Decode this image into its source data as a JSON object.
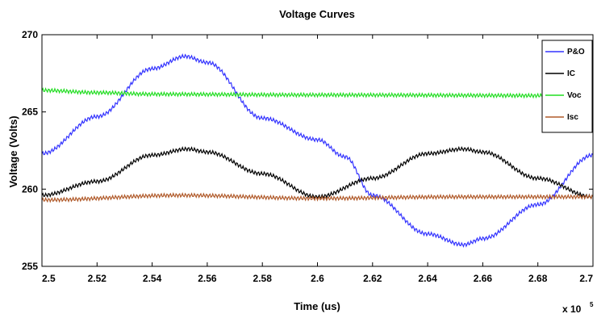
{
  "chart_data": {
    "type": "line",
    "title": "Voltage Curves",
    "xlabel": "Time (us)",
    "ylabel": "Voltage (Volts)",
    "x_multiplier_base": "x 10",
    "x_multiplier_exponent": "5",
    "xlim": [
      2.5,
      2.7
    ],
    "ylim": [
      255,
      270
    ],
    "x_ticks": [
      "2.5",
      "2.52",
      "2.54",
      "2.56",
      "2.58",
      "2.6",
      "2.62",
      "2.64",
      "2.66",
      "2.68",
      "2.7"
    ],
    "y_ticks": [
      "255",
      "260",
      "265",
      "270"
    ],
    "legend_position": "top-right",
    "grid": false,
    "series": [
      {
        "name": "P&O",
        "color": "#3333ff",
        "x": [
          2.5,
          2.52,
          2.54,
          2.552,
          2.56,
          2.58,
          2.6,
          2.61,
          2.62,
          2.64,
          2.653,
          2.66,
          2.68,
          2.7
        ],
        "y": [
          262.3,
          264.7,
          267.8,
          268.6,
          268.2,
          264.6,
          263.2,
          262.1,
          259.6,
          257.1,
          256.4,
          256.8,
          259.0,
          262.2
        ]
      },
      {
        "name": "IC",
        "color": "#000000",
        "x": [
          2.5,
          2.52,
          2.54,
          2.553,
          2.56,
          2.58,
          2.6,
          2.62,
          2.64,
          2.653,
          2.66,
          2.68,
          2.7
        ],
        "y": [
          259.6,
          260.5,
          262.2,
          262.6,
          262.4,
          261.0,
          259.5,
          260.7,
          262.3,
          262.6,
          262.4,
          260.7,
          259.5
        ]
      },
      {
        "name": "Voc",
        "color": "#22dd22",
        "x": [
          2.5,
          2.52,
          2.54,
          2.6,
          2.7
        ],
        "y": [
          266.4,
          266.25,
          266.15,
          266.1,
          266.05
        ]
      },
      {
        "name": "Isc",
        "color": "#b05a2a",
        "x": [
          2.5,
          2.55,
          2.6,
          2.65,
          2.7
        ],
        "y": [
          259.3,
          259.6,
          259.4,
          259.5,
          259.5
        ]
      }
    ]
  }
}
